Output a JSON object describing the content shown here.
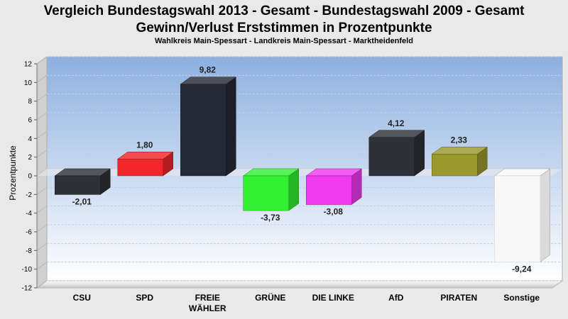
{
  "chart_data": {
    "type": "bar",
    "title_line1": "Vergleich Bundestagswahl 2013 - Gesamt - Bundestagswahl 2009 - Gesamt",
    "title_line2": "Gewinn/Verlust Erststimmen in Prozentpunkte",
    "subtitle": "Wahlkreis Main-Spessart - Landkreis Main-Spessart - Marktheidenfeld",
    "ylabel": "Prozentpunkte",
    "ylim": [
      -12,
      12
    ],
    "yticks": [
      12,
      10,
      8,
      6,
      4,
      2,
      0,
      -2,
      -4,
      -6,
      -8,
      -10,
      -12
    ],
    "grid": true,
    "categories": [
      {
        "label": "CSU",
        "label2": "",
        "value": -2.01,
        "value_label": "-2,01",
        "color": "#2e3137"
      },
      {
        "label": "SPD",
        "label2": "",
        "value": 1.8,
        "value_label": "1,80",
        "color": "#f0262b"
      },
      {
        "label": "FREIE",
        "label2": "WÄHLER",
        "value": 9.82,
        "value_label": "9,82",
        "color": "#262a36"
      },
      {
        "label": "GRÜNE",
        "label2": "",
        "value": -3.73,
        "value_label": "-3,73",
        "color": "#33f033"
      },
      {
        "label": "DIE LINKE",
        "label2": "",
        "value": -3.08,
        "value_label": "-3,08",
        "color": "#f03af0"
      },
      {
        "label": "AfD",
        "label2": "",
        "value": 4.12,
        "value_label": "4,12",
        "color": "#2e3137"
      },
      {
        "label": "PIRATEN",
        "label2": "",
        "value": 2.33,
        "value_label": "2,33",
        "color": "#99992e"
      },
      {
        "label": "Sonstige",
        "label2": "",
        "value": -9.24,
        "value_label": "-9,24",
        "color": "#f8f8f8"
      }
    ]
  }
}
